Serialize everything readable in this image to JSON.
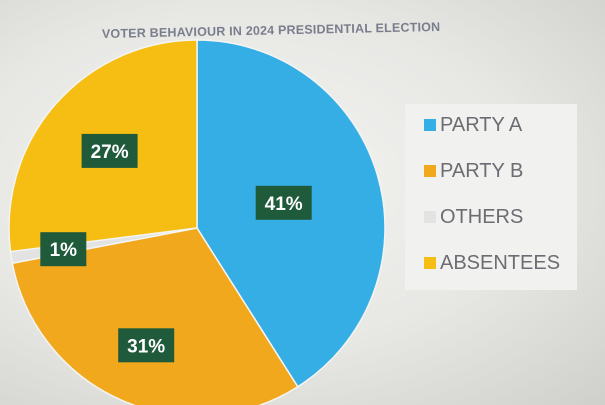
{
  "chart_data": {
    "type": "pie",
    "title": "VOTER BEHAVIOUR IN 2024 PRESIDENTIAL ELECTION",
    "slices": [
      {
        "name": "PARTY A",
        "value": 41,
        "label": "41%",
        "color": "#35aee5"
      },
      {
        "name": "PARTY B",
        "value": 31,
        "label": "31%",
        "color": "#f2a81d"
      },
      {
        "name": "OTHERS",
        "value": 1,
        "label": "1%",
        "color": "#e3e3e3"
      },
      {
        "name": "ABSENTEES",
        "value": 27,
        "label": "27%",
        "color": "#f6be12"
      }
    ],
    "legend_position": "right"
  }
}
